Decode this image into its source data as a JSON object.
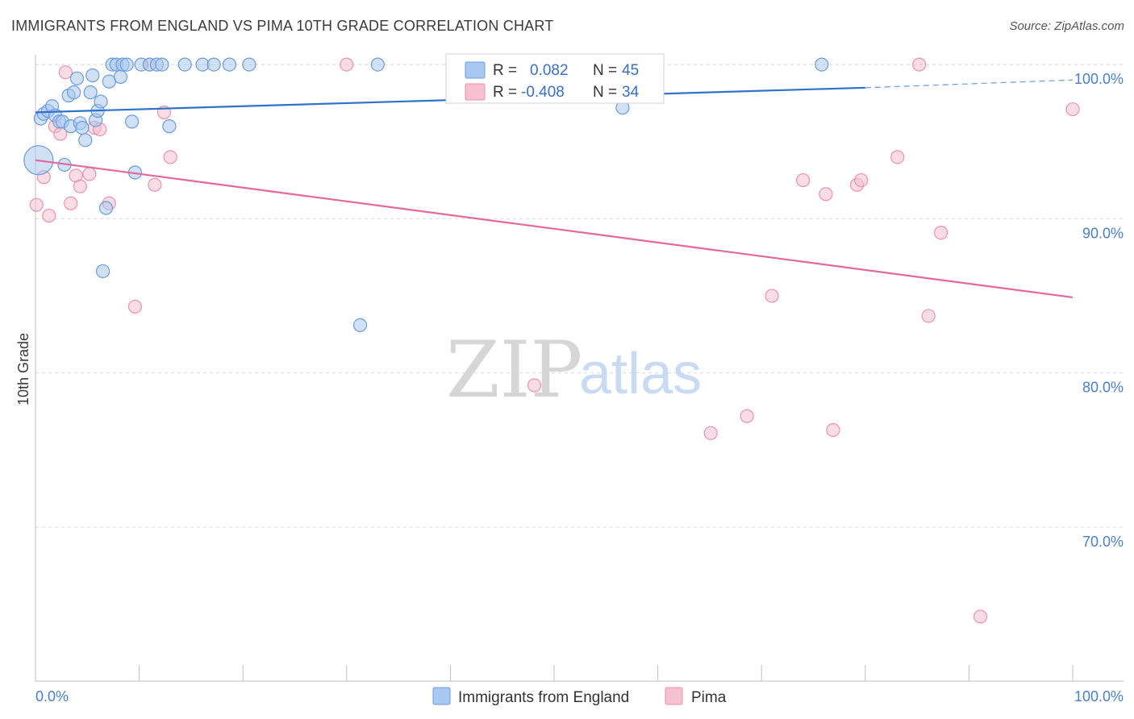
{
  "title": "IMMIGRANTS FROM ENGLAND VS PIMA 10TH GRADE CORRELATION CHART",
  "source": "Source: ZipAtlas.com",
  "watermark": {
    "zip": "ZIP",
    "atlas": "atlas"
  },
  "colors": {
    "blue_fill": "#a9c8ef",
    "blue_stroke": "#6b9be0",
    "blue_line": "#2f72cc",
    "pink_fill": "#f6c0d0",
    "pink_stroke": "#ec92ad",
    "pink_line": "#e4699a",
    "tick_text": "#4a7fc9",
    "grid": "#d9d9d9"
  },
  "chart_data": {
    "type": "scatter",
    "title": "IMMIGRANTS FROM ENGLAND VS PIMA 10TH GRADE CORRELATION CHART",
    "xlabel": "",
    "ylabel": "10th Grade",
    "xlim": [
      0,
      100
    ],
    "ylim": [
      60,
      101.5
    ],
    "x_tick_labels": [
      "0.0%",
      "100.0%"
    ],
    "y_ticks": [
      70,
      80,
      90,
      100
    ],
    "y_tick_labels": [
      "70.0%",
      "80.0%",
      "90.0%",
      "100.0%"
    ],
    "grid": true,
    "legend": [
      {
        "series": "Immigrants from England",
        "r_label": "R =",
        "r": "0.082",
        "n_label": "N =",
        "n": "45"
      },
      {
        "series": "Pima",
        "r_label": "R =",
        "r": "-0.408",
        "n_label": "N =",
        "n": "34"
      }
    ],
    "series": [
      {
        "name": "Immigrants from England",
        "color": "blue",
        "trend": {
          "x0": 0,
          "y0": 96.9,
          "x1": 80,
          "y1": 98.5,
          "dash_to_x": 100,
          "dash_to_y": 99.0
        },
        "points": [
          {
            "x": 0.3,
            "y": 93.8,
            "big": true
          },
          {
            "x": 0.5,
            "y": 96.5
          },
          {
            "x": 0.8,
            "y": 96.8
          },
          {
            "x": 1.2,
            "y": 97.0
          },
          {
            "x": 1.6,
            "y": 97.3
          },
          {
            "x": 1.9,
            "y": 96.7
          },
          {
            "x": 2.3,
            "y": 96.3
          },
          {
            "x": 2.6,
            "y": 96.3
          },
          {
            "x": 2.8,
            "y": 93.5
          },
          {
            "x": 3.2,
            "y": 98.0
          },
          {
            "x": 3.4,
            "y": 96.0
          },
          {
            "x": 3.7,
            "y": 98.2
          },
          {
            "x": 4.0,
            "y": 99.1
          },
          {
            "x": 4.3,
            "y": 96.2
          },
          {
            "x": 4.5,
            "y": 95.9
          },
          {
            "x": 4.8,
            "y": 95.1
          },
          {
            "x": 5.3,
            "y": 98.2
          },
          {
            "x": 5.5,
            "y": 99.3
          },
          {
            "x": 5.8,
            "y": 96.4
          },
          {
            "x": 6.0,
            "y": 97.0
          },
          {
            "x": 6.3,
            "y": 97.6
          },
          {
            "x": 6.5,
            "y": 86.6
          },
          {
            "x": 6.8,
            "y": 90.7
          },
          {
            "x": 7.1,
            "y": 98.9
          },
          {
            "x": 7.4,
            "y": 100
          },
          {
            "x": 7.8,
            "y": 100
          },
          {
            "x": 8.2,
            "y": 99.2
          },
          {
            "x": 8.4,
            "y": 100
          },
          {
            "x": 8.8,
            "y": 100
          },
          {
            "x": 9.3,
            "y": 96.3
          },
          {
            "x": 9.6,
            "y": 93.0
          },
          {
            "x": 10.2,
            "y": 100
          },
          {
            "x": 11.0,
            "y": 100
          },
          {
            "x": 11.7,
            "y": 100
          },
          {
            "x": 12.2,
            "y": 100
          },
          {
            "x": 12.9,
            "y": 96.0
          },
          {
            "x": 14.4,
            "y": 100
          },
          {
            "x": 16.1,
            "y": 100
          },
          {
            "x": 17.2,
            "y": 100
          },
          {
            "x": 18.7,
            "y": 100
          },
          {
            "x": 20.6,
            "y": 100
          },
          {
            "x": 31.3,
            "y": 83.1
          },
          {
            "x": 33.0,
            "y": 100
          },
          {
            "x": 56.6,
            "y": 97.2
          },
          {
            "x": 75.8,
            "y": 100
          }
        ]
      },
      {
        "name": "Pima",
        "color": "pink",
        "trend": {
          "x0": 0,
          "y0": 93.8,
          "x1": 100,
          "y1": 84.9
        },
        "points": [
          {
            "x": 0.1,
            "y": 90.9
          },
          {
            "x": 0.8,
            "y": 92.7
          },
          {
            "x": 1.3,
            "y": 90.2
          },
          {
            "x": 1.9,
            "y": 96.0
          },
          {
            "x": 2.4,
            "y": 95.5
          },
          {
            "x": 2.9,
            "y": 99.5
          },
          {
            "x": 3.4,
            "y": 91.0
          },
          {
            "x": 3.9,
            "y": 92.8
          },
          {
            "x": 4.3,
            "y": 92.1
          },
          {
            "x": 5.2,
            "y": 92.9
          },
          {
            "x": 5.7,
            "y": 95.9
          },
          {
            "x": 6.2,
            "y": 95.8
          },
          {
            "x": 7.1,
            "y": 91.0
          },
          {
            "x": 9.6,
            "y": 84.3
          },
          {
            "x": 11.0,
            "y": 100
          },
          {
            "x": 11.5,
            "y": 92.2
          },
          {
            "x": 12.4,
            "y": 96.9
          },
          {
            "x": 13.0,
            "y": 94.0
          },
          {
            "x": 30.0,
            "y": 100
          },
          {
            "x": 48.1,
            "y": 79.2
          },
          {
            "x": 65.1,
            "y": 76.1
          },
          {
            "x": 68.6,
            "y": 77.2
          },
          {
            "x": 71.0,
            "y": 85.0
          },
          {
            "x": 74.0,
            "y": 92.5
          },
          {
            "x": 76.2,
            "y": 91.6
          },
          {
            "x": 76.9,
            "y": 76.3
          },
          {
            "x": 79.2,
            "y": 92.2
          },
          {
            "x": 79.6,
            "y": 92.5
          },
          {
            "x": 83.1,
            "y": 94.0
          },
          {
            "x": 85.2,
            "y": 100
          },
          {
            "x": 86.1,
            "y": 83.7
          },
          {
            "x": 87.3,
            "y": 89.1
          },
          {
            "x": 91.1,
            "y": 64.2
          },
          {
            "x": 100,
            "y": 97.1
          }
        ]
      }
    ]
  }
}
